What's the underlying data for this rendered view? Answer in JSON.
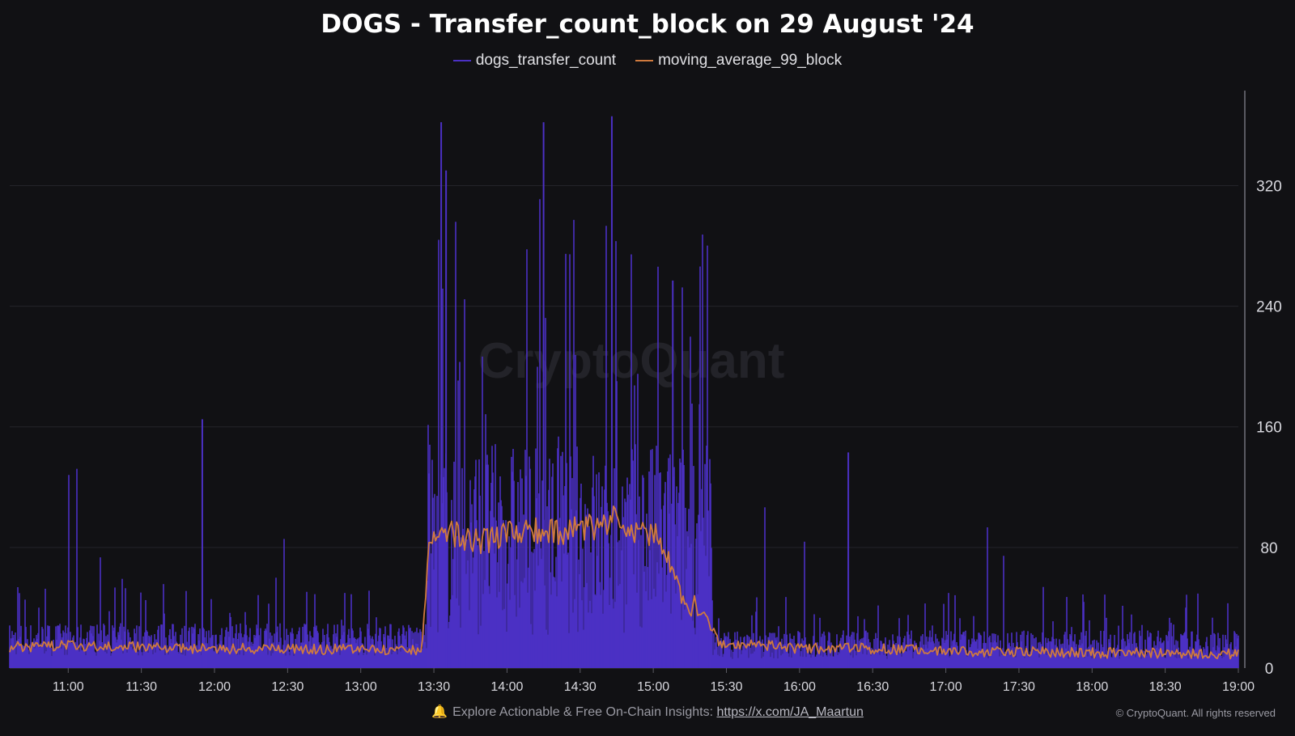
{
  "chart_data": {
    "type": "line",
    "title": "DOGS - Transfer_count_block on 29 August '24",
    "watermark": "CryptoQuant",
    "xlabel": "",
    "ylabel": "",
    "x_ticks": [
      "11:00",
      "11:30",
      "12:00",
      "12:30",
      "13:00",
      "13:30",
      "14:00",
      "14:30",
      "15:00",
      "15:30",
      "16:00",
      "16:30",
      "17:00",
      "17:30",
      "18:00",
      "18:30",
      "19:00"
    ],
    "x_range": [
      "10:36",
      "19:00"
    ],
    "y_ticks": [
      0,
      80,
      160,
      240,
      320
    ],
    "ylim": [
      0,
      383
    ],
    "y_axis_position": "right",
    "grid": true,
    "legend_position": "top-center",
    "series": [
      {
        "name": "dogs_transfer_count",
        "color": "#4b30c4",
        "style": "dense-bars",
        "regime_levels": [
          {
            "from": "10:36",
            "to": "13:27",
            "base": 8,
            "typical": 30,
            "max": 167
          },
          {
            "from": "13:27",
            "to": "15:24",
            "base": 22,
            "typical": 150,
            "max": 366
          },
          {
            "from": "15:24",
            "to": "19:00",
            "base": 6,
            "typical": 25,
            "max": 143
          }
        ],
        "notable_peaks": [
          {
            "x": "11:55",
            "y": 165
          },
          {
            "x": "13:33",
            "y": 362
          },
          {
            "x": "13:35",
            "y": 330
          },
          {
            "x": "14:15",
            "y": 362
          },
          {
            "x": "14:43",
            "y": 366
          },
          {
            "x": "15:08",
            "y": 257
          },
          {
            "x": "15:19",
            "y": 175
          },
          {
            "x": "16:20",
            "y": 143
          }
        ]
      },
      {
        "name": "moving_average_99_block",
        "color": "#d07a3e",
        "values": [
          {
            "x": "10:36",
            "y": 14
          },
          {
            "x": "11:00",
            "y": 15
          },
          {
            "x": "11:30",
            "y": 14
          },
          {
            "x": "12:00",
            "y": 13
          },
          {
            "x": "12:30",
            "y": 13
          },
          {
            "x": "13:00",
            "y": 12
          },
          {
            "x": "13:25",
            "y": 12
          },
          {
            "x": "13:28",
            "y": 80
          },
          {
            "x": "13:32",
            "y": 90
          },
          {
            "x": "13:40",
            "y": 88
          },
          {
            "x": "13:50",
            "y": 84
          },
          {
            "x": "14:00",
            "y": 88
          },
          {
            "x": "14:10",
            "y": 92
          },
          {
            "x": "14:20",
            "y": 90
          },
          {
            "x": "14:30",
            "y": 92
          },
          {
            "x": "14:40",
            "y": 95
          },
          {
            "x": "14:45",
            "y": 105
          },
          {
            "x": "14:50",
            "y": 93
          },
          {
            "x": "15:00",
            "y": 88
          },
          {
            "x": "15:05",
            "y": 82
          },
          {
            "x": "15:10",
            "y": 50
          },
          {
            "x": "15:17",
            "y": 40
          },
          {
            "x": "15:22",
            "y": 32
          },
          {
            "x": "15:27",
            "y": 16
          },
          {
            "x": "15:45",
            "y": 15
          },
          {
            "x": "16:00",
            "y": 13
          },
          {
            "x": "16:30",
            "y": 13
          },
          {
            "x": "17:00",
            "y": 11
          },
          {
            "x": "17:30",
            "y": 11
          },
          {
            "x": "18:00",
            "y": 10
          },
          {
            "x": "18:30",
            "y": 10
          },
          {
            "x": "19:00",
            "y": 9
          }
        ]
      }
    ]
  },
  "footer": {
    "note_prefix": "Explore Actionable & Free On-Chain Insights: ",
    "link_text": "https://x.com/JA_Maartun",
    "bell_icon": "bell-icon",
    "copyright": "© CryptoQuant. All rights reserved"
  },
  "colors": {
    "background": "#111114",
    "grid": "#24242a",
    "axis_text": "#d8d8de",
    "bars": "#4b30c4",
    "moving_average": "#d07a3e"
  }
}
